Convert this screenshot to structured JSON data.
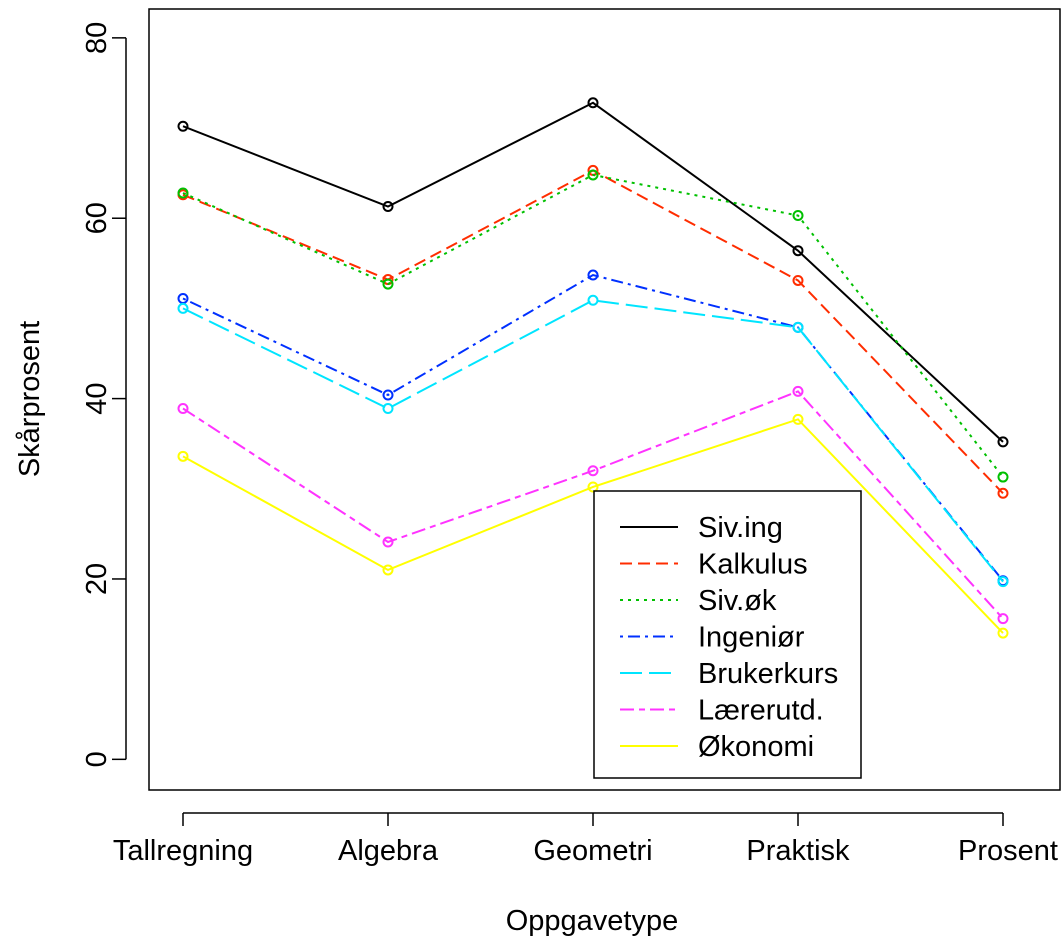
{
  "chart_data": {
    "type": "line",
    "title": "",
    "xlabel": "Oppgavetype",
    "ylabel": "Skårprosent",
    "categories": [
      "Tallregning",
      "Algebra",
      "Geometri",
      "Praktisk",
      "Prosent"
    ],
    "y_ticks": [
      0,
      20,
      40,
      60,
      80
    ],
    "ylim": [
      -3.4,
      83.2
    ],
    "grid": false,
    "legend_position": "bottom-right",
    "series": [
      {
        "name": "Siv.ing",
        "color": "#000000",
        "dash": "solid",
        "values": [
          70.2,
          61.3,
          72.8,
          56.4,
          35.2
        ]
      },
      {
        "name": "Kalkulus",
        "color": "#ff2d00",
        "dash": "dashed",
        "values": [
          62.6,
          53.2,
          65.3,
          53.1,
          29.5
        ]
      },
      {
        "name": "Siv.øk",
        "color": "#00c000",
        "dash": "dotted",
        "values": [
          62.8,
          52.7,
          64.8,
          60.3,
          31.3
        ]
      },
      {
        "name": "Ingeniør",
        "color": "#0030ff",
        "dash": "dotdash",
        "values": [
          51.1,
          40.4,
          53.7,
          47.9,
          19.8
        ]
      },
      {
        "name": "Brukerkurs",
        "color": "#00e5ff",
        "dash": "longdash",
        "values": [
          50.0,
          38.9,
          50.9,
          47.9,
          19.7
        ]
      },
      {
        "name": "Lærerutd.",
        "color": "#ff33ff",
        "dash": "twodash",
        "values": [
          38.9,
          24.1,
          32.0,
          40.8,
          15.6
        ]
      },
      {
        "name": "Økonomi",
        "color": "#ffff00",
        "dash": "solid",
        "values": [
          33.6,
          21.0,
          30.2,
          37.7,
          14.0
        ]
      }
    ]
  }
}
